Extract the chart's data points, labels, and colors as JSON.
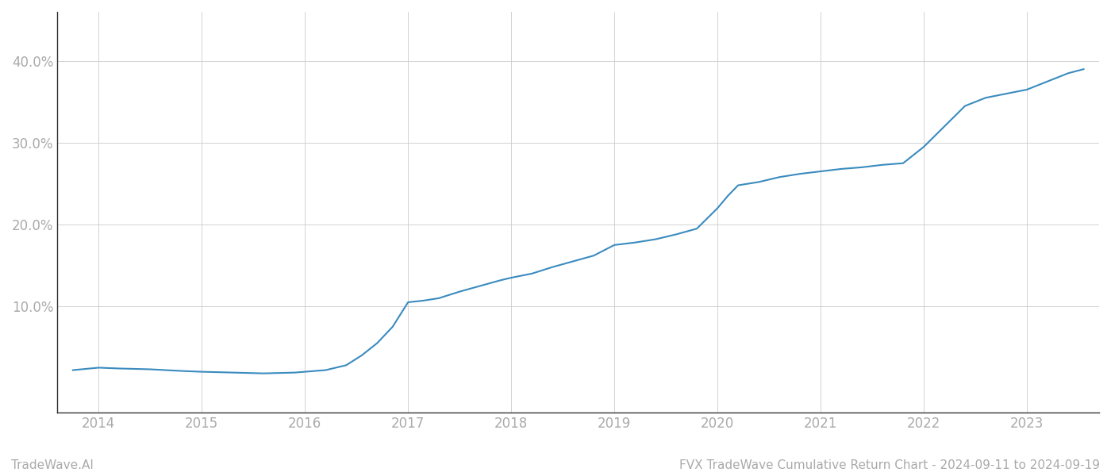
{
  "title": "FVX TradeWave Cumulative Return Chart - 2024-09-11 to 2024-09-19",
  "watermark": "TradeWave.AI",
  "line_color": "#3a8bbf",
  "background_color": "#ffffff",
  "grid_color": "#cccccc",
  "x_values": [
    2013.75,
    2014.0,
    2014.2,
    2014.5,
    2014.8,
    2015.0,
    2015.3,
    2015.6,
    2015.9,
    2016.0,
    2016.1,
    2016.2,
    2016.4,
    2016.55,
    2016.7,
    2016.85,
    2017.0,
    2017.15,
    2017.3,
    2017.5,
    2017.7,
    2017.9,
    2018.0,
    2018.2,
    2018.4,
    2018.6,
    2018.8,
    2019.0,
    2019.2,
    2019.4,
    2019.6,
    2019.8,
    2020.0,
    2020.1,
    2020.2,
    2020.4,
    2020.6,
    2020.8,
    2021.0,
    2021.2,
    2021.4,
    2021.6,
    2021.8,
    2022.0,
    2022.2,
    2022.4,
    2022.6,
    2022.8,
    2023.0,
    2023.2,
    2023.4,
    2023.55
  ],
  "y_values": [
    2.2,
    2.5,
    2.4,
    2.3,
    2.1,
    2.0,
    1.9,
    1.8,
    1.9,
    2.0,
    2.1,
    2.2,
    2.8,
    4.0,
    5.5,
    7.5,
    10.5,
    10.7,
    11.0,
    11.8,
    12.5,
    13.2,
    13.5,
    14.0,
    14.8,
    15.5,
    16.2,
    17.5,
    17.8,
    18.2,
    18.8,
    19.5,
    22.0,
    23.5,
    24.8,
    25.2,
    25.8,
    26.2,
    26.5,
    26.8,
    27.0,
    27.3,
    27.5,
    29.5,
    32.0,
    34.5,
    35.5,
    36.0,
    36.5,
    37.5,
    38.5,
    39.0
  ],
  "xlim": [
    2013.6,
    2023.7
  ],
  "ylim": [
    -3,
    46
  ],
  "yticks": [
    10.0,
    20.0,
    30.0,
    40.0
  ],
  "ytick_labels": [
    "10.0%",
    "20.0%",
    "30.0%",
    "40.0%"
  ],
  "xticks": [
    2014,
    2015,
    2016,
    2017,
    2018,
    2019,
    2020,
    2021,
    2022,
    2023
  ],
  "xtick_labels": [
    "2014",
    "2015",
    "2016",
    "2017",
    "2018",
    "2019",
    "2020",
    "2021",
    "2022",
    "2023"
  ],
  "line_width": 1.5,
  "tick_color": "#aaaaaa",
  "title_color": "#aaaaaa",
  "watermark_color": "#aaaaaa",
  "title_fontsize": 11,
  "tick_fontsize": 12,
  "watermark_fontsize": 11
}
